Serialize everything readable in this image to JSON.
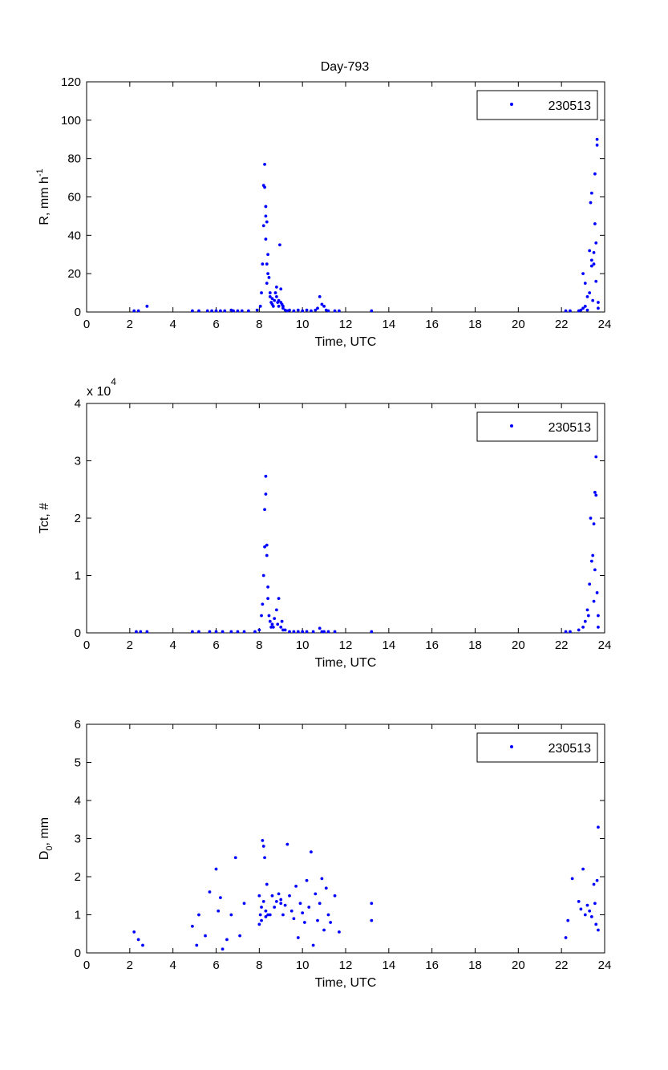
{
  "figure": {
    "title": "Day-793",
    "marker_color": "#0000ff"
  },
  "chart_data": [
    {
      "type": "scatter",
      "xlabel": "Time, UTC",
      "ylabel_main": "R, mm h",
      "ylabel_sup": "-1",
      "xlim": [
        0,
        24
      ],
      "ylim": [
        0,
        120
      ],
      "xticks": [
        "0",
        "2",
        "4",
        "6",
        "8",
        "10",
        "12",
        "14",
        "16",
        "18",
        "20",
        "22",
        "24"
      ],
      "yticks": [
        "0",
        "20",
        "40",
        "60",
        "80",
        "100",
        "120"
      ],
      "legend_position": "top-right",
      "series": [
        {
          "name": "230513",
          "x": [
            2.2,
            2.4,
            2.8,
            4.9,
            5.2,
            5.6,
            5.8,
            6.0,
            6.2,
            6.4,
            6.7,
            6.8,
            7.0,
            7.2,
            7.5,
            7.9,
            8.05,
            8.1,
            8.15,
            8.2,
            8.2,
            8.25,
            8.25,
            8.3,
            8.3,
            8.3,
            8.35,
            8.35,
            8.35,
            8.4,
            8.4,
            8.45,
            8.5,
            8.5,
            8.55,
            8.6,
            8.6,
            8.65,
            8.7,
            8.75,
            8.8,
            8.8,
            8.85,
            8.9,
            8.9,
            8.95,
            9.0,
            9.0,
            9.05,
            9.1,
            9.1,
            9.2,
            9.3,
            9.4,
            9.6,
            9.8,
            10.0,
            10.2,
            10.4,
            10.6,
            10.7,
            10.8,
            10.9,
            11.0,
            11.1,
            11.2,
            11.5,
            11.7,
            13.2,
            22.2,
            22.4,
            22.8,
            22.9,
            23.0,
            23.0,
            23.1,
            23.1,
            23.2,
            23.2,
            23.3,
            23.3,
            23.35,
            23.4,
            23.4,
            23.4,
            23.45,
            23.5,
            23.5,
            23.55,
            23.55,
            23.6,
            23.6,
            23.65,
            23.65,
            23.7,
            23.7
          ],
          "y": [
            0,
            0,
            3,
            0,
            0,
            0,
            0,
            0,
            0,
            0,
            1,
            0,
            0,
            0,
            0,
            1,
            3,
            10,
            25,
            45,
            66,
            77,
            65,
            55,
            50,
            38,
            47,
            25,
            15,
            30,
            20,
            18,
            10,
            8,
            5,
            7,
            4,
            3,
            6,
            10,
            13,
            8,
            5,
            6,
            3,
            35,
            12,
            5,
            4,
            3,
            2,
            1,
            0,
            1,
            0,
            1,
            0,
            1,
            0,
            1,
            2,
            8,
            4,
            3,
            1,
            0,
            0,
            0,
            0,
            0,
            0,
            0,
            1,
            2,
            20,
            3,
            15,
            8,
            1,
            10,
            32,
            57,
            62,
            27,
            24,
            6,
            25,
            31,
            46,
            72,
            36,
            16,
            87,
            90,
            5,
            2
          ]
        }
      ]
    },
    {
      "type": "scatter",
      "xlabel": "Time, UTC",
      "ylabel_main": "Tct, #",
      "exponent_base": "x 10",
      "exponent_power": "4",
      "xlim": [
        0,
        24
      ],
      "ylim": [
        0,
        4
      ],
      "xticks": [
        "0",
        "2",
        "4",
        "6",
        "8",
        "10",
        "12",
        "14",
        "16",
        "18",
        "20",
        "22",
        "24"
      ],
      "yticks": [
        "0",
        "1",
        "2",
        "3",
        "4"
      ],
      "legend_position": "top-right",
      "series": [
        {
          "name": "230513",
          "x": [
            2.3,
            2.5,
            2.8,
            4.9,
            5.2,
            5.7,
            6.0,
            6.3,
            6.7,
            7.0,
            7.3,
            7.8,
            8.0,
            8.1,
            8.15,
            8.2,
            8.25,
            8.25,
            8.3,
            8.3,
            8.35,
            8.35,
            8.4,
            8.4,
            8.45,
            8.5,
            8.55,
            8.6,
            8.65,
            8.7,
            8.8,
            8.85,
            8.9,
            9.0,
            9.05,
            9.1,
            9.2,
            9.4,
            9.6,
            9.8,
            10.0,
            10.2,
            10.5,
            10.8,
            10.9,
            11.0,
            11.2,
            11.5,
            13.2,
            22.2,
            22.4,
            22.8,
            23.0,
            23.1,
            23.2,
            23.25,
            23.3,
            23.35,
            23.4,
            23.45,
            23.5,
            23.5,
            23.55,
            23.55,
            23.6,
            23.6,
            23.65,
            23.7,
            23.7
          ],
          "y": [
            0,
            0,
            0,
            0,
            0,
            0,
            0,
            0,
            0,
            0,
            0,
            0,
            0.05,
            0.3,
            0.5,
            1.0,
            1.5,
            2.15,
            2.42,
            2.73,
            1.53,
            1.35,
            0.8,
            0.6,
            0.3,
            0.2,
            0.1,
            0.15,
            0.1,
            0.25,
            0.4,
            0.15,
            0.6,
            0.1,
            0.2,
            0.05,
            0.05,
            0.02,
            0.02,
            0.02,
            0.02,
            0.02,
            0.02,
            0.08,
            0.02,
            0.02,
            0.02,
            0.02,
            0.02,
            0,
            0,
            0.05,
            0.1,
            0.2,
            0.4,
            0.3,
            0.85,
            2.0,
            1.25,
            1.35,
            0.55,
            1.9,
            1.1,
            2.45,
            2.4,
            3.07,
            0.7,
            0.3,
            0.1
          ]
        }
      ]
    },
    {
      "type": "scatter",
      "xlabel": "Time, UTC",
      "ylabel_main": "D",
      "ylabel_sub": "0",
      "ylabel_suffix": ", mm",
      "xlim": [
        0,
        24
      ],
      "ylim": [
        0,
        6
      ],
      "xticks": [
        "0",
        "2",
        "4",
        "6",
        "8",
        "10",
        "12",
        "14",
        "16",
        "18",
        "20",
        "22",
        "24"
      ],
      "yticks": [
        "0",
        "1",
        "2",
        "3",
        "4",
        "5",
        "6"
      ],
      "legend_position": "top-right",
      "series": [
        {
          "name": "230513",
          "x": [
            2.2,
            2.4,
            2.6,
            4.9,
            5.1,
            5.2,
            5.5,
            5.7,
            6.0,
            6.1,
            6.2,
            6.3,
            6.5,
            6.7,
            6.9,
            7.1,
            7.3,
            8.0,
            8.0,
            8.05,
            8.1,
            8.1,
            8.15,
            8.2,
            8.2,
            8.25,
            8.3,
            8.3,
            8.35,
            8.4,
            8.5,
            8.6,
            8.7,
            8.8,
            8.9,
            9.0,
            9.0,
            9.1,
            9.2,
            9.3,
            9.4,
            9.5,
            9.6,
            9.7,
            9.8,
            9.9,
            10.0,
            10.1,
            10.2,
            10.3,
            10.4,
            10.5,
            10.6,
            10.7,
            10.8,
            10.9,
            11.0,
            11.1,
            11.2,
            11.3,
            11.5,
            11.7,
            13.2,
            13.2,
            22.2,
            22.3,
            22.5,
            22.8,
            22.9,
            23.0,
            23.1,
            23.2,
            23.3,
            23.4,
            23.5,
            23.55,
            23.6,
            23.65,
            23.7,
            23.7
          ],
          "y": [
            0.55,
            0.35,
            0.2,
            0.7,
            0.2,
            1.0,
            0.45,
            1.6,
            2.2,
            1.1,
            1.45,
            0.1,
            0.35,
            1.0,
            2.5,
            0.45,
            1.3,
            0.75,
            1.5,
            1.0,
            0.85,
            1.2,
            2.95,
            2.8,
            1.35,
            2.5,
            0.95,
            1.1,
            1.8,
            1.0,
            1.0,
            1.5,
            1.2,
            1.35,
            1.55,
            1.3,
            1.4,
            1.0,
            1.25,
            2.85,
            1.5,
            1.1,
            0.9,
            1.75,
            0.4,
            1.3,
            1.05,
            0.8,
            1.9,
            1.2,
            2.65,
            0.2,
            1.55,
            0.85,
            1.3,
            1.95,
            0.6,
            1.7,
            1.0,
            0.8,
            1.5,
            0.55,
            1.3,
            0.85,
            0.4,
            0.85,
            1.95,
            1.35,
            1.15,
            2.2,
            1.0,
            1.25,
            1.1,
            0.95,
            1.8,
            1.3,
            0.75,
            1.9,
            3.3,
            0.6
          ]
        }
      ]
    }
  ]
}
